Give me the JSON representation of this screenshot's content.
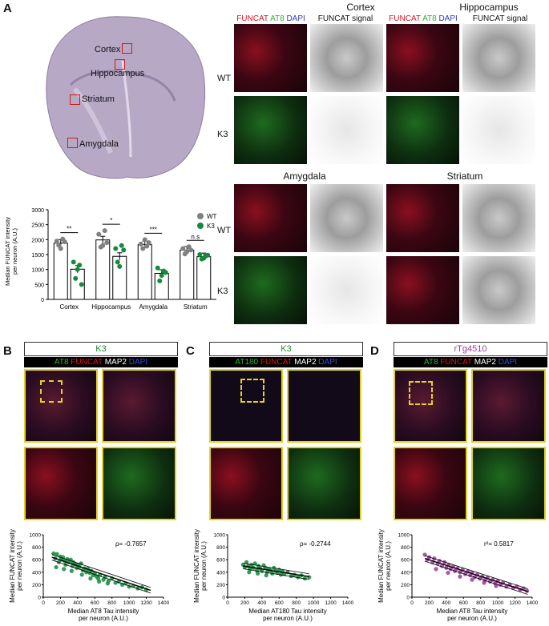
{
  "panels": {
    "A": "A",
    "B": "B",
    "C": "C",
    "D": "D"
  },
  "panelA": {
    "brain_labels": [
      "Cortex",
      "Hippocampus",
      "Striatum",
      "Amygdala"
    ],
    "region_titles": {
      "cortex": "Cortex",
      "hippocampus": "Hippocampus",
      "amygdala": "Amygdala",
      "striatum": "Striatum"
    },
    "col_headers": {
      "funcat": "FUNCAT",
      "at8": "AT8",
      "dapi": "DAPI",
      "signal": "FUNCAT signal"
    },
    "row_labels": {
      "wt": "WT",
      "k3": "K3"
    },
    "colors": {
      "funcat": "#e0151f",
      "at8": "#3aa935",
      "dapi": "#2e3fb8"
    }
  },
  "chart_data": [
    {
      "type": "bar",
      "ylabel": "Median FUNCAT intensity per neuron (A.U.)",
      "ylim": [
        0,
        3000
      ],
      "yticks": [
        0,
        500,
        1000,
        1500,
        2000,
        2500,
        3000
      ],
      "categories": [
        "Cortex",
        "Hippocampus",
        "Amygdala",
        "Striatum"
      ],
      "series": [
        {
          "name": "WT",
          "color": "#808080",
          "values": [
            1880,
            1990,
            1830,
            1650
          ],
          "points": [
            [
              1950,
              1810,
              1700,
              2020,
              1930
            ],
            [
              2180,
              1750,
              1800,
              2300,
              1900
            ],
            [
              1850,
              1700,
              2000,
              1780,
              1900
            ],
            [
              1700,
              1520,
              1600,
              1760,
              1650
            ]
          ]
        },
        {
          "name": "K3",
          "color": "#148a3c",
          "values": [
            1010,
            1440,
            870,
            1430
          ],
          "points": [
            [
              1250,
              700,
              1000,
              1150,
              500
            ],
            [
              1700,
              1250,
              1100,
              1800,
              1650
            ],
            [
              1050,
              620,
              800,
              950,
              900
            ],
            [
              1500,
              1350,
              1380,
              1450,
              1480
            ]
          ]
        }
      ],
      "significance": [
        "**",
        "*",
        "***",
        "n.s"
      ],
      "legend_position": "top-right"
    },
    {
      "type": "scatter",
      "panel": "B",
      "xlabel": "Median AT8 Tau intensity per neuron (A.U.)",
      "ylabel": "Median FUNCAT intensity per neuron (A.U.)",
      "xlim": [
        0,
        1400
      ],
      "ylim": [
        0,
        1000
      ],
      "xticks": [
        0,
        200,
        400,
        600,
        800,
        1000,
        1200,
        1400
      ],
      "yticks": [
        0,
        200,
        400,
        600,
        800,
        1000
      ],
      "color": "#138a3a",
      "annotation": "ρ= -0.7657",
      "fit": [
        [
          100,
          640
        ],
        [
          1250,
          110
        ]
      ],
      "points": [
        [
          120,
          700
        ],
        [
          140,
          620
        ],
        [
          160,
          690
        ],
        [
          180,
          560
        ],
        [
          200,
          650
        ],
        [
          210,
          600
        ],
        [
          230,
          640
        ],
        [
          250,
          580
        ],
        [
          260,
          520
        ],
        [
          280,
          610
        ],
        [
          300,
          560
        ],
        [
          320,
          600
        ],
        [
          340,
          500
        ],
        [
          350,
          560
        ],
        [
          370,
          530
        ],
        [
          390,
          470
        ],
        [
          400,
          520
        ],
        [
          420,
          480
        ],
        [
          440,
          540
        ],
        [
          460,
          430
        ],
        [
          480,
          460
        ],
        [
          500,
          400
        ],
        [
          520,
          450
        ],
        [
          540,
          390
        ],
        [
          560,
          420
        ],
        [
          580,
          350
        ],
        [
          600,
          380
        ],
        [
          620,
          330
        ],
        [
          640,
          300
        ],
        [
          660,
          360
        ],
        [
          700,
          280
        ],
        [
          720,
          320
        ],
        [
          760,
          260
        ],
        [
          800,
          300
        ],
        [
          840,
          230
        ],
        [
          880,
          250
        ],
        [
          920,
          200
        ],
        [
          960,
          220
        ],
        [
          1000,
          170
        ],
        [
          1050,
          180
        ],
        [
          1100,
          140
        ],
        [
          1150,
          160
        ],
        [
          1200,
          120
        ],
        [
          150,
          480
        ],
        [
          240,
          450
        ],
        [
          330,
          420
        ],
        [
          450,
          360
        ],
        [
          550,
          300
        ],
        [
          650,
          250
        ],
        [
          750,
          220
        ]
      ]
    },
    {
      "type": "scatter",
      "panel": "C",
      "xlabel": "Median AT180 Tau intensity per neuron (A.U.)",
      "ylabel": "Median FUNCAT intensity per neuron (A.U.)",
      "xlim": [
        0,
        1400
      ],
      "ylim": [
        0,
        1000
      ],
      "xticks": [
        0,
        200,
        400,
        600,
        800,
        1000,
        1200,
        1400
      ],
      "yticks": [
        0,
        200,
        400,
        600,
        800,
        1000
      ],
      "color": "#138a3a",
      "annotation": "ρ= -0.2744",
      "fit": [
        [
          180,
          500
        ],
        [
          950,
          330
        ]
      ],
      "points": [
        [
          180,
          520
        ],
        [
          200,
          480
        ],
        [
          220,
          560
        ],
        [
          240,
          500
        ],
        [
          260,
          450
        ],
        [
          280,
          520
        ],
        [
          300,
          470
        ],
        [
          320,
          540
        ],
        [
          340,
          430
        ],
        [
          360,
          500
        ],
        [
          380,
          460
        ],
        [
          400,
          420
        ],
        [
          420,
          510
        ],
        [
          440,
          470
        ],
        [
          460,
          400
        ],
        [
          480,
          450
        ],
        [
          500,
          430
        ],
        [
          520,
          380
        ],
        [
          540,
          470
        ],
        [
          560,
          420
        ],
        [
          580,
          390
        ],
        [
          600,
          440
        ],
        [
          620,
          360
        ],
        [
          640,
          410
        ],
        [
          660,
          370
        ],
        [
          700,
          400
        ],
        [
          740,
          340
        ],
        [
          780,
          360
        ],
        [
          820,
          320
        ],
        [
          860,
          350
        ],
        [
          900,
          300
        ],
        [
          950,
          320
        ],
        [
          250,
          400
        ],
        [
          350,
          380
        ],
        [
          450,
          350
        ]
      ]
    },
    {
      "type": "scatter",
      "panel": "D",
      "xlabel": "Median AT8 Tau intensity per neuron (A.U.)",
      "ylabel": "Median FUNCAT intensity per neuron (A.U.)",
      "xlim": [
        0,
        1400
      ],
      "ylim": [
        0,
        1000
      ],
      "xticks": [
        0,
        200,
        400,
        600,
        800,
        1000,
        1200,
        1400
      ],
      "yticks": [
        0,
        200,
        400,
        600,
        800,
        1000
      ],
      "color": "#9b3a9b",
      "annotation": "r²= 0.5817",
      "fit": [
        [
          150,
          620
        ],
        [
          1350,
          90
        ]
      ],
      "points": [
        [
          150,
          680
        ],
        [
          180,
          600
        ],
        [
          200,
          640
        ],
        [
          240,
          560
        ],
        [
          260,
          620
        ],
        [
          300,
          540
        ],
        [
          320,
          580
        ],
        [
          350,
          500
        ],
        [
          380,
          560
        ],
        [
          400,
          470
        ],
        [
          430,
          520
        ],
        [
          450,
          450
        ],
        [
          480,
          490
        ],
        [
          500,
          420
        ],
        [
          530,
          460
        ],
        [
          560,
          400
        ],
        [
          590,
          440
        ],
        [
          620,
          370
        ],
        [
          650,
          410
        ],
        [
          680,
          350
        ],
        [
          700,
          390
        ],
        [
          730,
          320
        ],
        [
          760,
          360
        ],
        [
          790,
          300
        ],
        [
          820,
          330
        ],
        [
          850,
          270
        ],
        [
          880,
          310
        ],
        [
          910,
          250
        ],
        [
          940,
          280
        ],
        [
          970,
          220
        ],
        [
          1000,
          260
        ],
        [
          1030,
          200
        ],
        [
          1060,
          230
        ],
        [
          1100,
          170
        ],
        [
          1140,
          200
        ],
        [
          1180,
          150
        ],
        [
          1220,
          170
        ],
        [
          1260,
          120
        ],
        [
          1300,
          140
        ],
        [
          1340,
          100
        ],
        [
          280,
          450
        ],
        [
          420,
          390
        ],
        [
          560,
          330
        ],
        [
          700,
          280
        ],
        [
          840,
          230
        ],
        [
          980,
          180
        ]
      ]
    }
  ],
  "panelB": {
    "title": "K3",
    "ch1": "AT8",
    "ch2": "FUNCAT",
    "ch3": "MAP2",
    "ch4": "DAPI"
  },
  "panelC": {
    "title": "K3",
    "ch1": "AT180",
    "ch2": "FUNCAT",
    "ch3": "MAP2",
    "ch4": "DAPI"
  },
  "panelD": {
    "title": "rTg4510",
    "ch1": "AT8",
    "ch2": "FUNCAT",
    "ch3": "MAP2",
    "ch4": "DAPI"
  },
  "label_colors": {
    "green": "#3aa935",
    "red": "#e0151f",
    "white": "#ffffff",
    "blue": "#3a4bd8",
    "purple": "#9b3a9b",
    "title_green": "#1f8a2a"
  }
}
